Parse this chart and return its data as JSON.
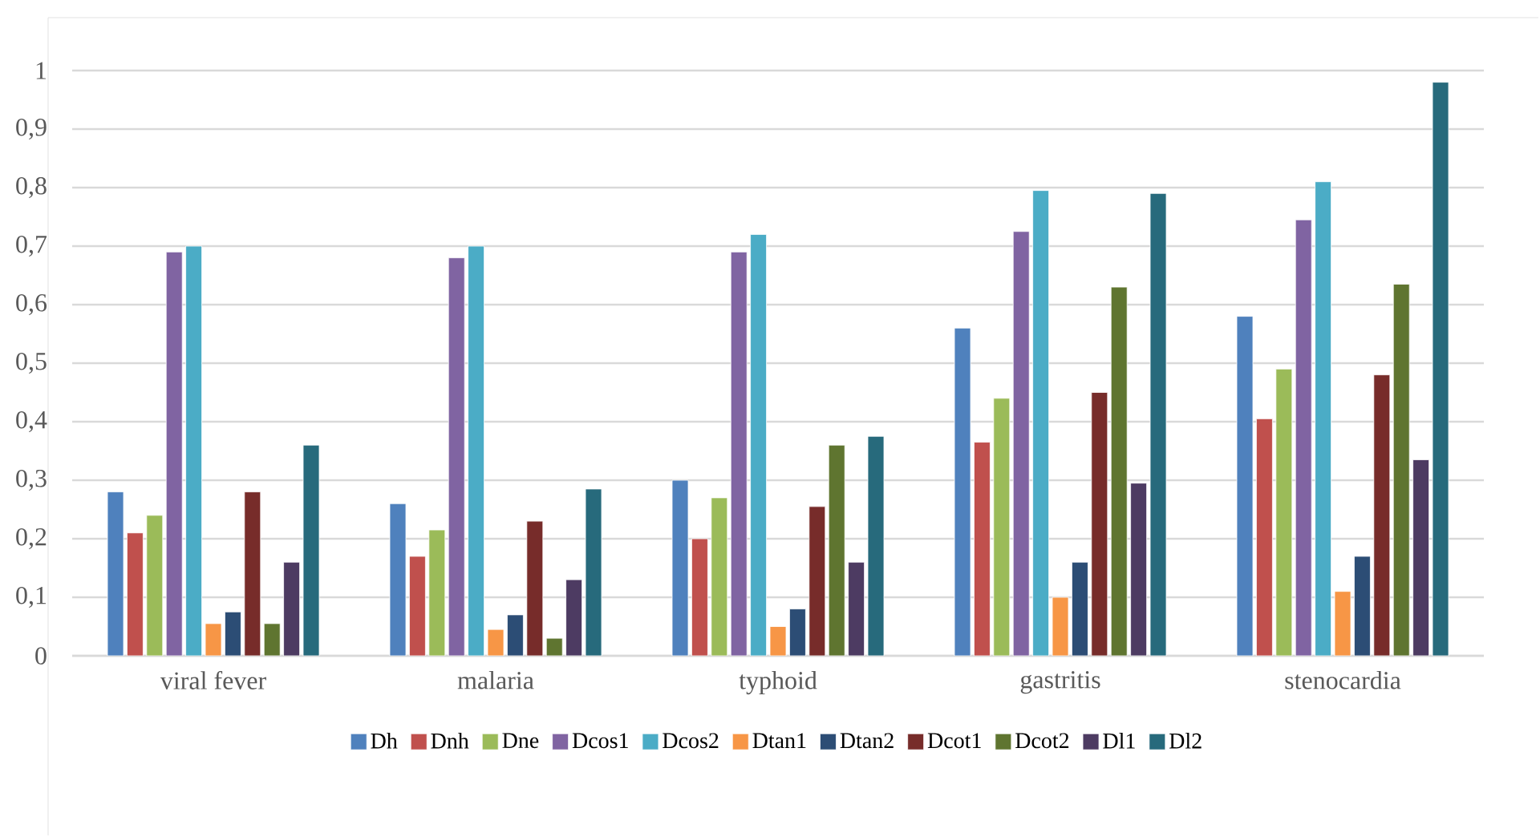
{
  "chart_data": {
    "type": "bar",
    "categories": [
      "viral fever",
      "malaria",
      "typhoid",
      "gastritis",
      "stenocardia"
    ],
    "series": [
      {
        "name": "Dh",
        "color": "#4f81bd",
        "values": [
          0.28,
          0.26,
          0.3,
          0.56,
          0.58
        ]
      },
      {
        "name": "Dnh",
        "color": "#c0504d",
        "values": [
          0.21,
          0.17,
          0.2,
          0.365,
          0.405
        ]
      },
      {
        "name": "Dne",
        "color": "#9bbb59",
        "values": [
          0.24,
          0.215,
          0.27,
          0.44,
          0.49
        ]
      },
      {
        "name": "Dcos1",
        "color": "#8064a2",
        "values": [
          0.69,
          0.68,
          0.69,
          0.725,
          0.745
        ]
      },
      {
        "name": "Dcos2",
        "color": "#4bacc6",
        "values": [
          0.7,
          0.7,
          0.72,
          0.795,
          0.81
        ]
      },
      {
        "name": "Dtan1",
        "color": "#f79646",
        "values": [
          0.055,
          0.045,
          0.05,
          0.1,
          0.11
        ]
      },
      {
        "name": "Dtan2",
        "color": "#2c4d75",
        "values": [
          0.075,
          0.07,
          0.08,
          0.16,
          0.17
        ]
      },
      {
        "name": "Dcot1",
        "color": "#772c2a",
        "values": [
          0.28,
          0.23,
          0.255,
          0.45,
          0.48
        ]
      },
      {
        "name": "Dcot2",
        "color": "#5f7530",
        "values": [
          0.055,
          0.03,
          0.36,
          0.63,
          0.635
        ]
      },
      {
        "name": "Dl1",
        "color": "#4d3b62",
        "values": [
          0.16,
          0.13,
          0.16,
          0.295,
          0.335
        ]
      },
      {
        "name": "Dl2",
        "color": "#276a7c",
        "values": [
          0.36,
          0.285,
          0.375,
          0.79,
          0.98
        ]
      }
    ],
    "ylim": [
      0,
      1
    ],
    "yticks": [
      0,
      {
        "value": 0.1,
        "label": "0,1"
      },
      {
        "value": 0.2,
        "label": "0,2"
      },
      {
        "value": 0.3,
        "label": "0,3"
      },
      {
        "value": 0.4,
        "label": "0,4"
      },
      {
        "value": 0.5,
        "label": "0,5"
      },
      {
        "value": 0.6,
        "label": "0,6"
      },
      {
        "value": 0.7,
        "label": "0,7"
      },
      {
        "value": 0.8,
        "label": "0,8"
      },
      {
        "value": 0.9,
        "label": "0,9"
      },
      1
    ],
    "grid": "y",
    "legend": "bottom"
  }
}
